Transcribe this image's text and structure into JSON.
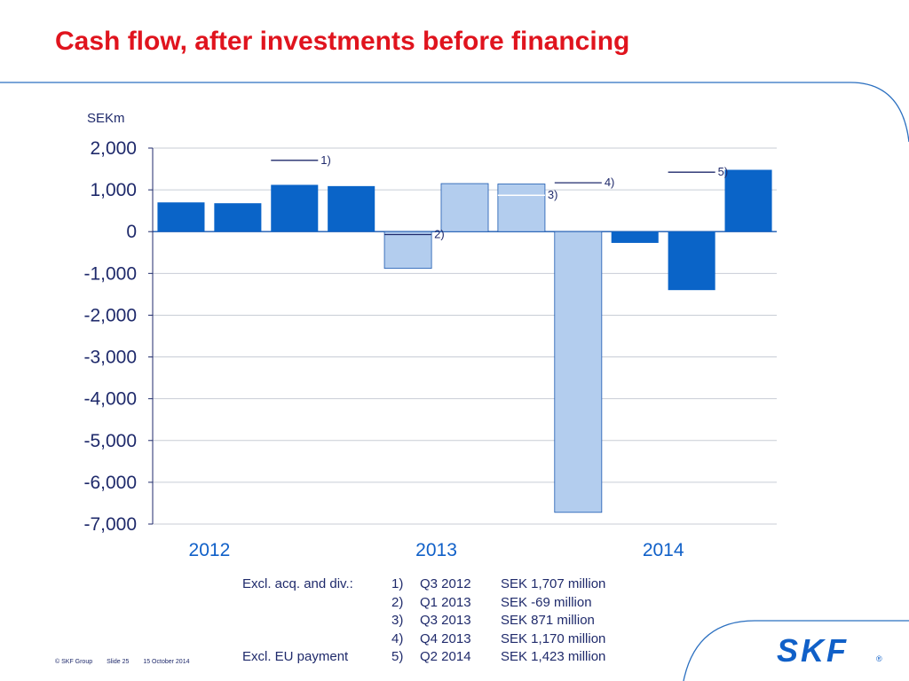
{
  "slide": {
    "title": "Cash flow, after investments before financing",
    "footer": {
      "copyright": "© SKF Group",
      "slide_number": "Slide 25",
      "date": "15 October 2014"
    },
    "logo_text": "SKF",
    "logo_mark": "®",
    "colors": {
      "title": "#e0141e",
      "bar_dark": "#0a64c8",
      "bar_light": "#b3cdee",
      "text": "#1f2a6b",
      "year_text": "#1060c8"
    }
  },
  "chart_data": {
    "type": "bar",
    "unit_label": "SEKm",
    "ylim": [
      -7000,
      2000
    ],
    "yticks": [
      2000,
      1000,
      0,
      -1000,
      -2000,
      -3000,
      -4000,
      -5000,
      -6000,
      -7000
    ],
    "ytick_labels": [
      "2,000",
      "1,000",
      "0",
      "-1,000",
      "-2,000",
      "-3,000",
      "-4,000",
      "-5,000",
      "-6,000",
      "-7,000"
    ],
    "grid": true,
    "year_labels": [
      "2012",
      "2013",
      "2014"
    ],
    "bars": [
      {
        "value": 700,
        "style": "dark"
      },
      {
        "value": 680,
        "style": "dark"
      },
      {
        "value": 1120,
        "style": "dark",
        "adjusted_value": 1707,
        "note": "1)"
      },
      {
        "value": 1090,
        "style": "dark"
      },
      {
        "value": -880,
        "style": "light",
        "adjusted_value": -69,
        "note": "2)"
      },
      {
        "value": 1150,
        "style": "light"
      },
      {
        "value": 1140,
        "style": "light",
        "adjusted_value": 871,
        "note": "3)"
      },
      {
        "value": -6720,
        "style": "light",
        "adjusted_value": 1170,
        "note": "4)"
      },
      {
        "value": -270,
        "style": "dark"
      },
      {
        "value": -1400,
        "style": "dark",
        "adjusted_value": 1423,
        "note": "5)"
      },
      {
        "value": 1480,
        "style": "dark"
      }
    ]
  },
  "notes": [
    {
      "label": "Excl. acq. and div.:",
      "num": "1)",
      "period": "Q3 2012",
      "value": "SEK 1,707 million"
    },
    {
      "label": "",
      "num": "2)",
      "period": "Q1 2013",
      "value": "SEK -69 million"
    },
    {
      "label": "",
      "num": "3)",
      "period": "Q3 2013",
      "value": "SEK 871 million"
    },
    {
      "label": "",
      "num": "4)",
      "period": "Q4 2013",
      "value": "SEK 1,170 million"
    },
    {
      "label": "Excl. EU payment",
      "num": "5)",
      "period": "Q2 2014",
      "value": "SEK 1,423 million"
    }
  ]
}
